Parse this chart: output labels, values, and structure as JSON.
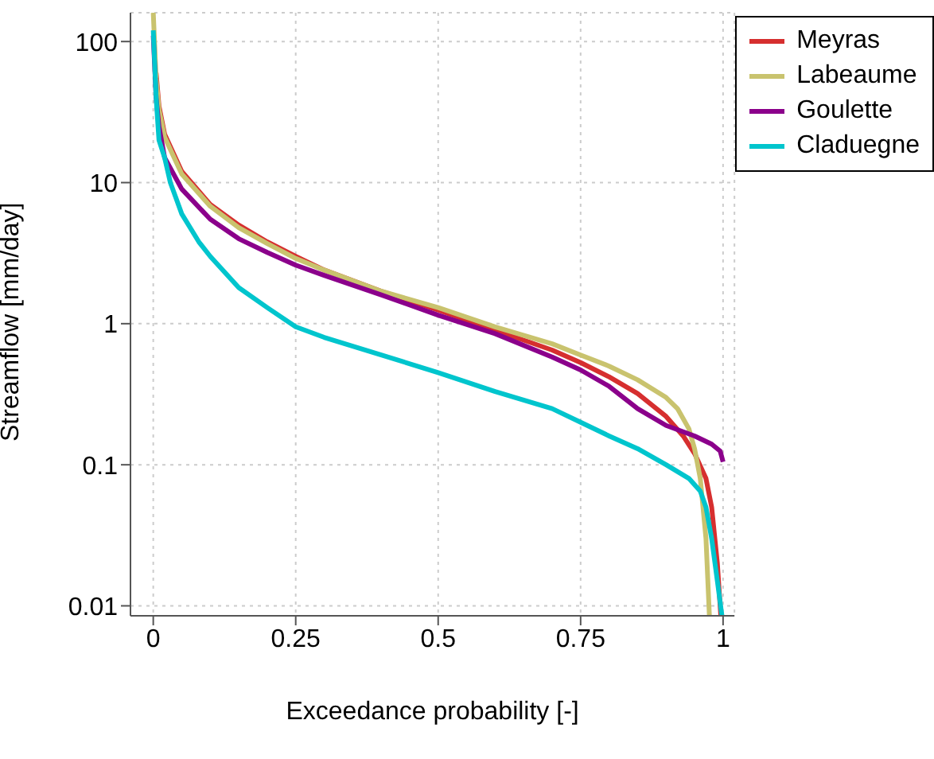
{
  "chart_data": {
    "type": "line",
    "xlabel": "Exceedance probability [-]",
    "ylabel": "Streamflow [mm/day]",
    "log": "y",
    "grid": true,
    "legend": "top right",
    "marker": "none",
    "line_style": "solid",
    "xlim": [
      -0.04,
      1.02
    ],
    "ylim": [
      0.0085,
      160
    ],
    "xticks": [
      0,
      0.25,
      0.5,
      0.75,
      1
    ],
    "yticks": [
      0.01,
      0.1,
      1,
      10,
      100
    ],
    "series": [
      {
        "name": "Meyras",
        "color": "#d62f2f",
        "x": [
          0.005,
          0.01,
          0.02,
          0.05,
          0.1,
          0.15,
          0.2,
          0.25,
          0.3,
          0.4,
          0.5,
          0.6,
          0.7,
          0.75,
          0.8,
          0.85,
          0.9,
          0.93,
          0.95,
          0.97,
          0.98,
          0.99,
          0.996
        ],
        "values": [
          60,
          35,
          22,
          12,
          7,
          5,
          3.8,
          3,
          2.4,
          1.7,
          1.25,
          0.9,
          0.65,
          0.53,
          0.42,
          0.32,
          0.22,
          0.16,
          0.12,
          0.08,
          0.05,
          0.02,
          0.0085
        ]
      },
      {
        "name": "Labeaume",
        "color": "#c9c36e",
        "x": [
          0,
          0.005,
          0.01,
          0.02,
          0.05,
          0.1,
          0.15,
          0.2,
          0.25,
          0.3,
          0.4,
          0.5,
          0.6,
          0.7,
          0.75,
          0.8,
          0.85,
          0.9,
          0.92,
          0.94,
          0.95,
          0.96,
          0.97,
          0.976
        ],
        "values": [
          160,
          55,
          33,
          21,
          11.5,
          6.8,
          4.8,
          3.7,
          2.9,
          2.4,
          1.7,
          1.3,
          0.95,
          0.72,
          0.6,
          0.5,
          0.4,
          0.3,
          0.25,
          0.18,
          0.13,
          0.08,
          0.03,
          0.0085
        ]
      },
      {
        "name": "Goulette",
        "color": "#8b008b",
        "x": [
          0,
          0.005,
          0.01,
          0.02,
          0.05,
          0.1,
          0.15,
          0.2,
          0.25,
          0.3,
          0.4,
          0.5,
          0.6,
          0.7,
          0.75,
          0.8,
          0.85,
          0.9,
          0.95,
          0.98,
          0.995,
          1
        ],
        "values": [
          110,
          40,
          25,
          15,
          9,
          5.5,
          4,
          3.2,
          2.6,
          2.2,
          1.6,
          1.15,
          0.85,
          0.58,
          0.47,
          0.36,
          0.25,
          0.19,
          0.16,
          0.14,
          0.125,
          0.105
        ]
      },
      {
        "name": "Claduegne",
        "color": "#00c5cd",
        "x": [
          0,
          0.005,
          0.01,
          0.02,
          0.03,
          0.05,
          0.08,
          0.1,
          0.15,
          0.2,
          0.25,
          0.3,
          0.4,
          0.5,
          0.6,
          0.7,
          0.75,
          0.8,
          0.85,
          0.9,
          0.94,
          0.96,
          0.97,
          0.98,
          0.99,
          0.998
        ],
        "values": [
          120,
          40,
          20,
          15,
          10,
          6,
          3.8,
          3,
          1.8,
          1.3,
          0.95,
          0.8,
          0.6,
          0.45,
          0.33,
          0.25,
          0.2,
          0.16,
          0.13,
          0.1,
          0.08,
          0.065,
          0.05,
          0.03,
          0.015,
          0.0085
        ]
      }
    ]
  }
}
